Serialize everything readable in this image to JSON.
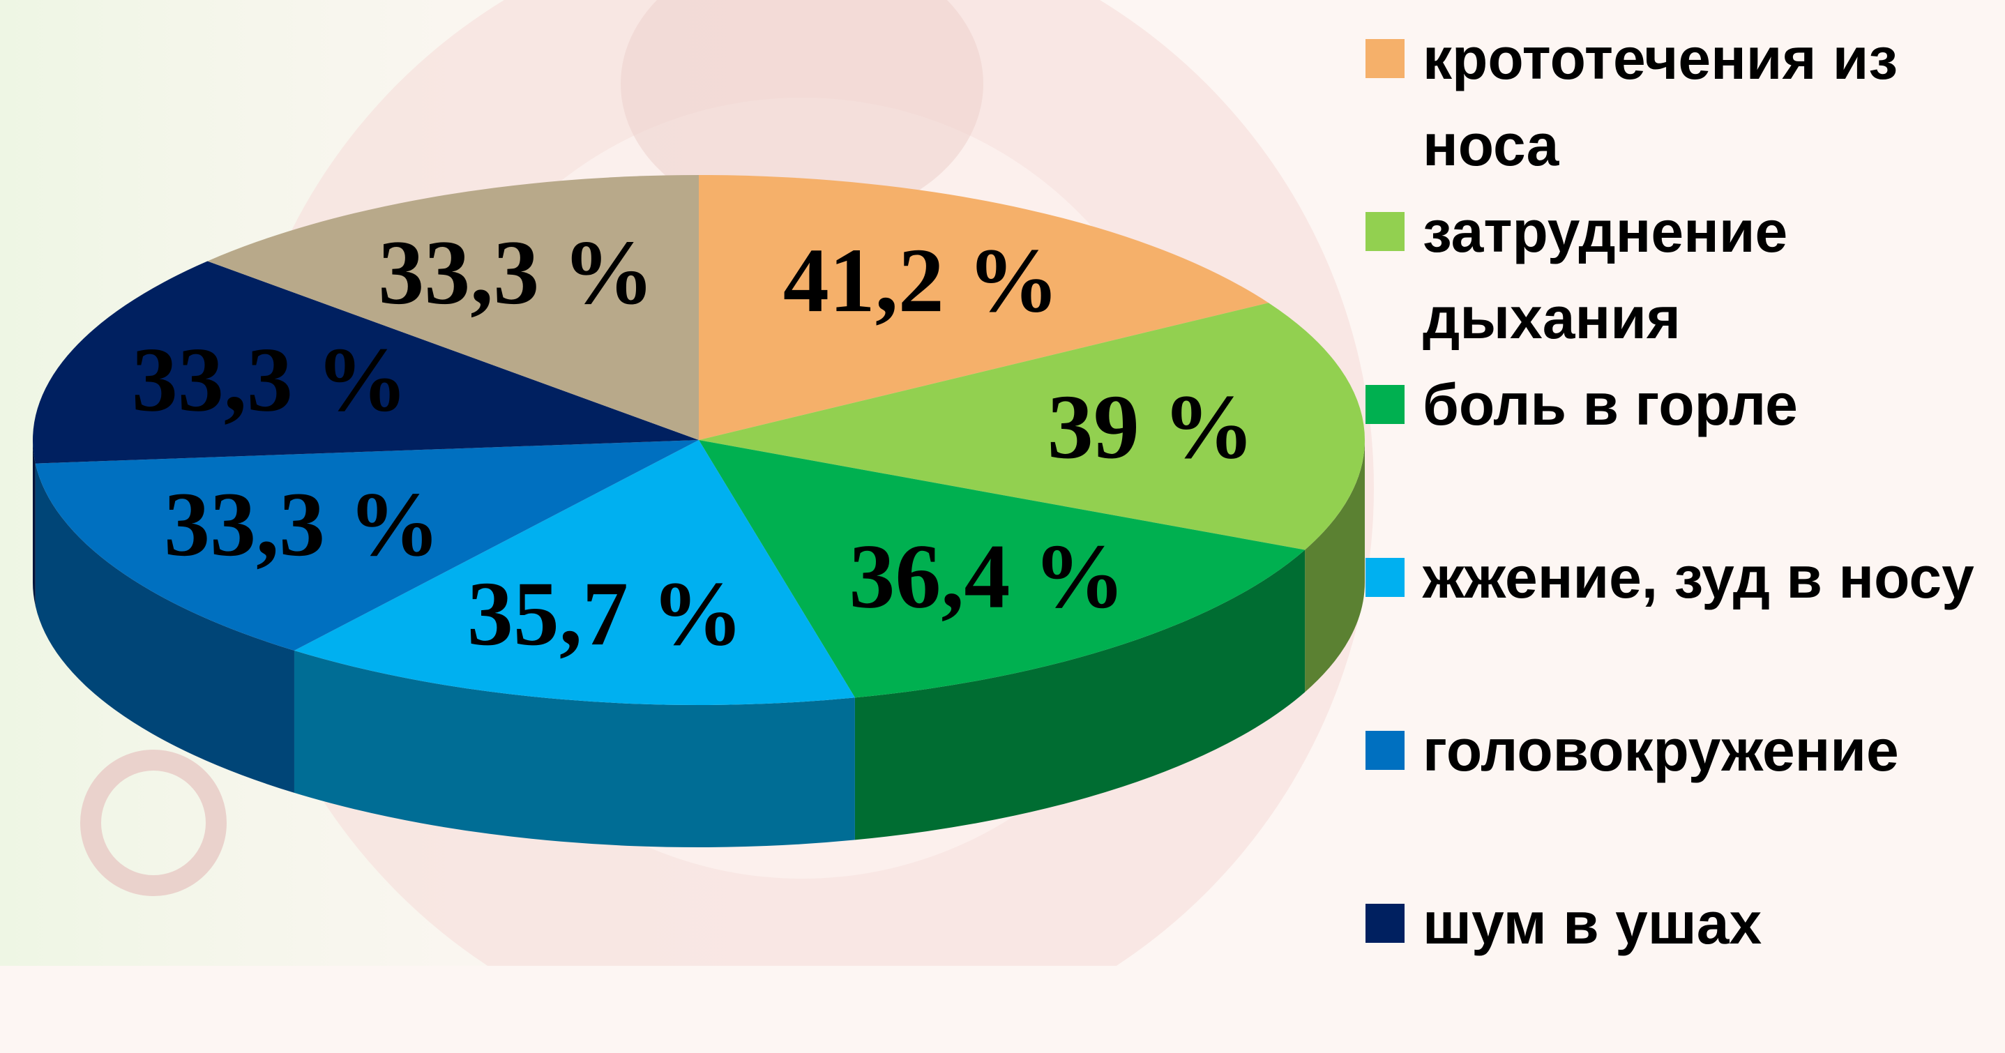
{
  "chart_data": {
    "type": "pie",
    "categories": [
      "крототечения из носа",
      "затруднение дыхания",
      "боль в горле",
      "жжение, зуд в носу",
      "головокружение",
      "шум в ушах",
      null
    ],
    "values": [
      41.2,
      39,
      36.4,
      35.7,
      33.3,
      33.3,
      33.3
    ],
    "value_labels": [
      "41,2 %",
      "39 %",
      "36,4 %",
      "35,7 %",
      "33,3 %",
      "33,3 %",
      "33,3 %"
    ],
    "colors": [
      "#f5b06a",
      "#92d050",
      "#00b050",
      "#00b0f0",
      "#0070c0",
      "#002060",
      "#b8a98a"
    ]
  }
}
